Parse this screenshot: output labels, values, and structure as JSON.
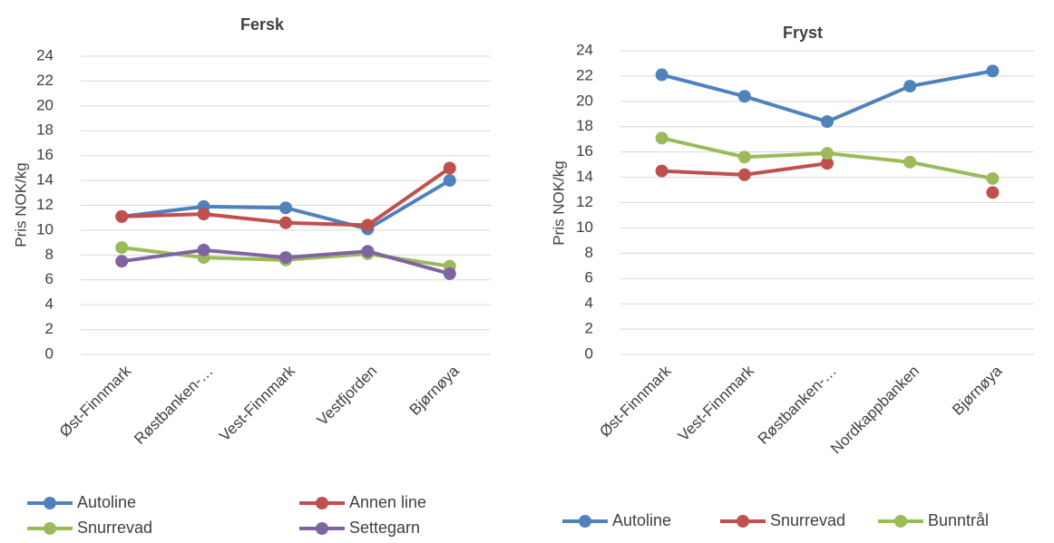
{
  "chart_data": [
    {
      "type": "line",
      "title": "Fersk",
      "y_label": "Pris NOK/kg",
      "categories": [
        "Øst-Finnmark",
        "Røstbanken-…",
        "Vest-Finnmark",
        "Vestfjorden",
        "Bjørnøya"
      ],
      "series": [
        {
          "name": "Autoline",
          "color": "#4f81bd",
          "values": [
            11.1,
            11.9,
            11.8,
            10.1,
            14.0
          ]
        },
        {
          "name": "Annen line",
          "color": "#c0504d",
          "values": [
            11.1,
            11.3,
            10.6,
            10.4,
            15.0
          ]
        },
        {
          "name": "Snurrevad",
          "color": "#9bbb59",
          "values": [
            8.6,
            7.8,
            7.6,
            8.1,
            7.1
          ]
        },
        {
          "name": "Settegarn",
          "color": "#8064a2",
          "values": [
            7.5,
            8.4,
            7.8,
            8.3,
            6.5
          ]
        }
      ],
      "ylim": [
        0,
        24
      ],
      "yticks": [
        0,
        2,
        4,
        6,
        8,
        10,
        12,
        14,
        16,
        18,
        20,
        22,
        24
      ],
      "grid": true
    },
    {
      "type": "line",
      "title": "Fryst",
      "y_label": "Pris NOK/kg",
      "categories": [
        "Øst-Finnmark",
        "Vest-Finnmark",
        "Røstbanken-…",
        "Nordkappbanken",
        "Bjørnøya"
      ],
      "series": [
        {
          "name": "Autoline",
          "color": "#4f81bd",
          "values": [
            22.1,
            20.4,
            18.4,
            21.2,
            22.4
          ]
        },
        {
          "name": "Snurrevad",
          "color": "#c0504d",
          "values": [
            14.5,
            14.2,
            15.1,
            null,
            12.8
          ]
        },
        {
          "name": "Bunntrål",
          "color": "#9bbb59",
          "values": [
            17.1,
            15.6,
            15.9,
            15.2,
            13.9
          ]
        }
      ],
      "ylim": [
        0,
        24
      ],
      "yticks": [
        0,
        2,
        4,
        6,
        8,
        10,
        12,
        14,
        16,
        18,
        20,
        22,
        24
      ],
      "grid": true
    }
  ]
}
